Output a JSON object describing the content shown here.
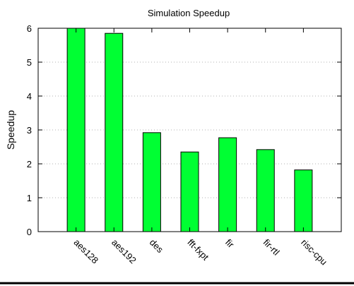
{
  "chart_data": {
    "type": "bar",
    "title": "Simulation Speedup",
    "xlabel": "",
    "ylabel": "Speedup",
    "categories": [
      "aes128",
      "aes192",
      "des",
      "fft-fxpt",
      "fir",
      "fir-rtl",
      "risc-cpu"
    ],
    "values": [
      6.0,
      5.85,
      2.92,
      2.35,
      2.77,
      2.42,
      1.82
    ],
    "ylim": [
      0,
      6
    ],
    "yticks": [
      0,
      1,
      2,
      3,
      4,
      5,
      6
    ],
    "grid": "horizontal-dotted",
    "legend": "none",
    "bar_color": "#00ff33",
    "bar_edge_color": "#000000"
  }
}
